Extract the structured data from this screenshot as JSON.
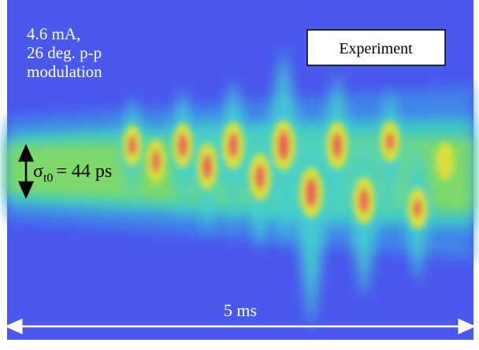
{
  "annotations": {
    "current": "4.6 mA,",
    "modulation_depth": "26 deg. p-p",
    "modulation_label": "modulation",
    "sigma_symbol": "σ",
    "sigma_subscript": "t0",
    "sigma_value": "= 44 ps",
    "time_span": "5 ms"
  },
  "legend_box": {
    "label": "Experiment"
  }
}
